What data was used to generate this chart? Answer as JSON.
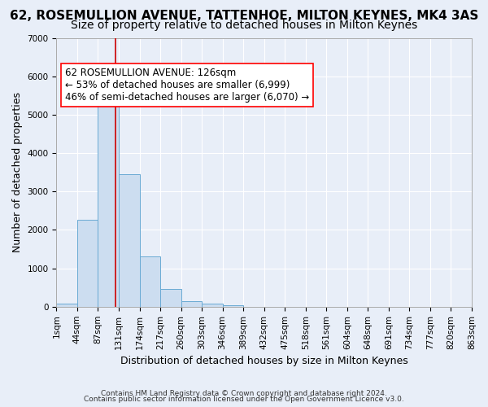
{
  "title": "62, ROSEMULLION AVENUE, TATTENHOE, MILTON KEYNES, MK4 3AS",
  "subtitle": "Size of property relative to detached houses in Milton Keynes",
  "xlabel": "Distribution of detached houses by size in Milton Keynes",
  "ylabel": "Number of detached properties",
  "footnote1": "Contains HM Land Registry data © Crown copyright and database right 2024.",
  "footnote2": "Contains public sector information licensed under the Open Government Licence v3.0.",
  "annotation_line1": "62 ROSEMULLION AVENUE: 126sqm",
  "annotation_line2": "← 53% of detached houses are smaller (6,999)",
  "annotation_line3": "46% of semi-detached houses are larger (6,070) →",
  "bar_color": "#ccddf0",
  "bar_edge_color": "#6aaad4",
  "vline_color": "#cc0000",
  "vline_x": 2.86,
  "ylim": [
    0,
    7000
  ],
  "yticks": [
    0,
    1000,
    2000,
    3000,
    4000,
    5000,
    6000,
    7000
  ],
  "bin_labels": [
    "1sqm",
    "44sqm",
    "87sqm",
    "131sqm",
    "174sqm",
    "217sqm",
    "260sqm",
    "303sqm",
    "346sqm",
    "389sqm",
    "432sqm",
    "475sqm",
    "518sqm",
    "561sqm",
    "604sqm",
    "648sqm",
    "691sqm",
    "734sqm",
    "777sqm",
    "820sqm",
    "863sqm"
  ],
  "bar_values": [
    80,
    2270,
    5480,
    3440,
    1310,
    470,
    155,
    80,
    40,
    0,
    0,
    0,
    0,
    0,
    0,
    0,
    0,
    0,
    0,
    0
  ],
  "plot_bg_color": "#e8eef8",
  "grid_color": "#ffffff",
  "title_fontsize": 11,
  "subtitle_fontsize": 10,
  "annotation_fontsize": 8.5,
  "tick_fontsize": 7.5,
  "ylabel_fontsize": 9,
  "xlabel_fontsize": 9,
  "footnote_fontsize": 6.5
}
